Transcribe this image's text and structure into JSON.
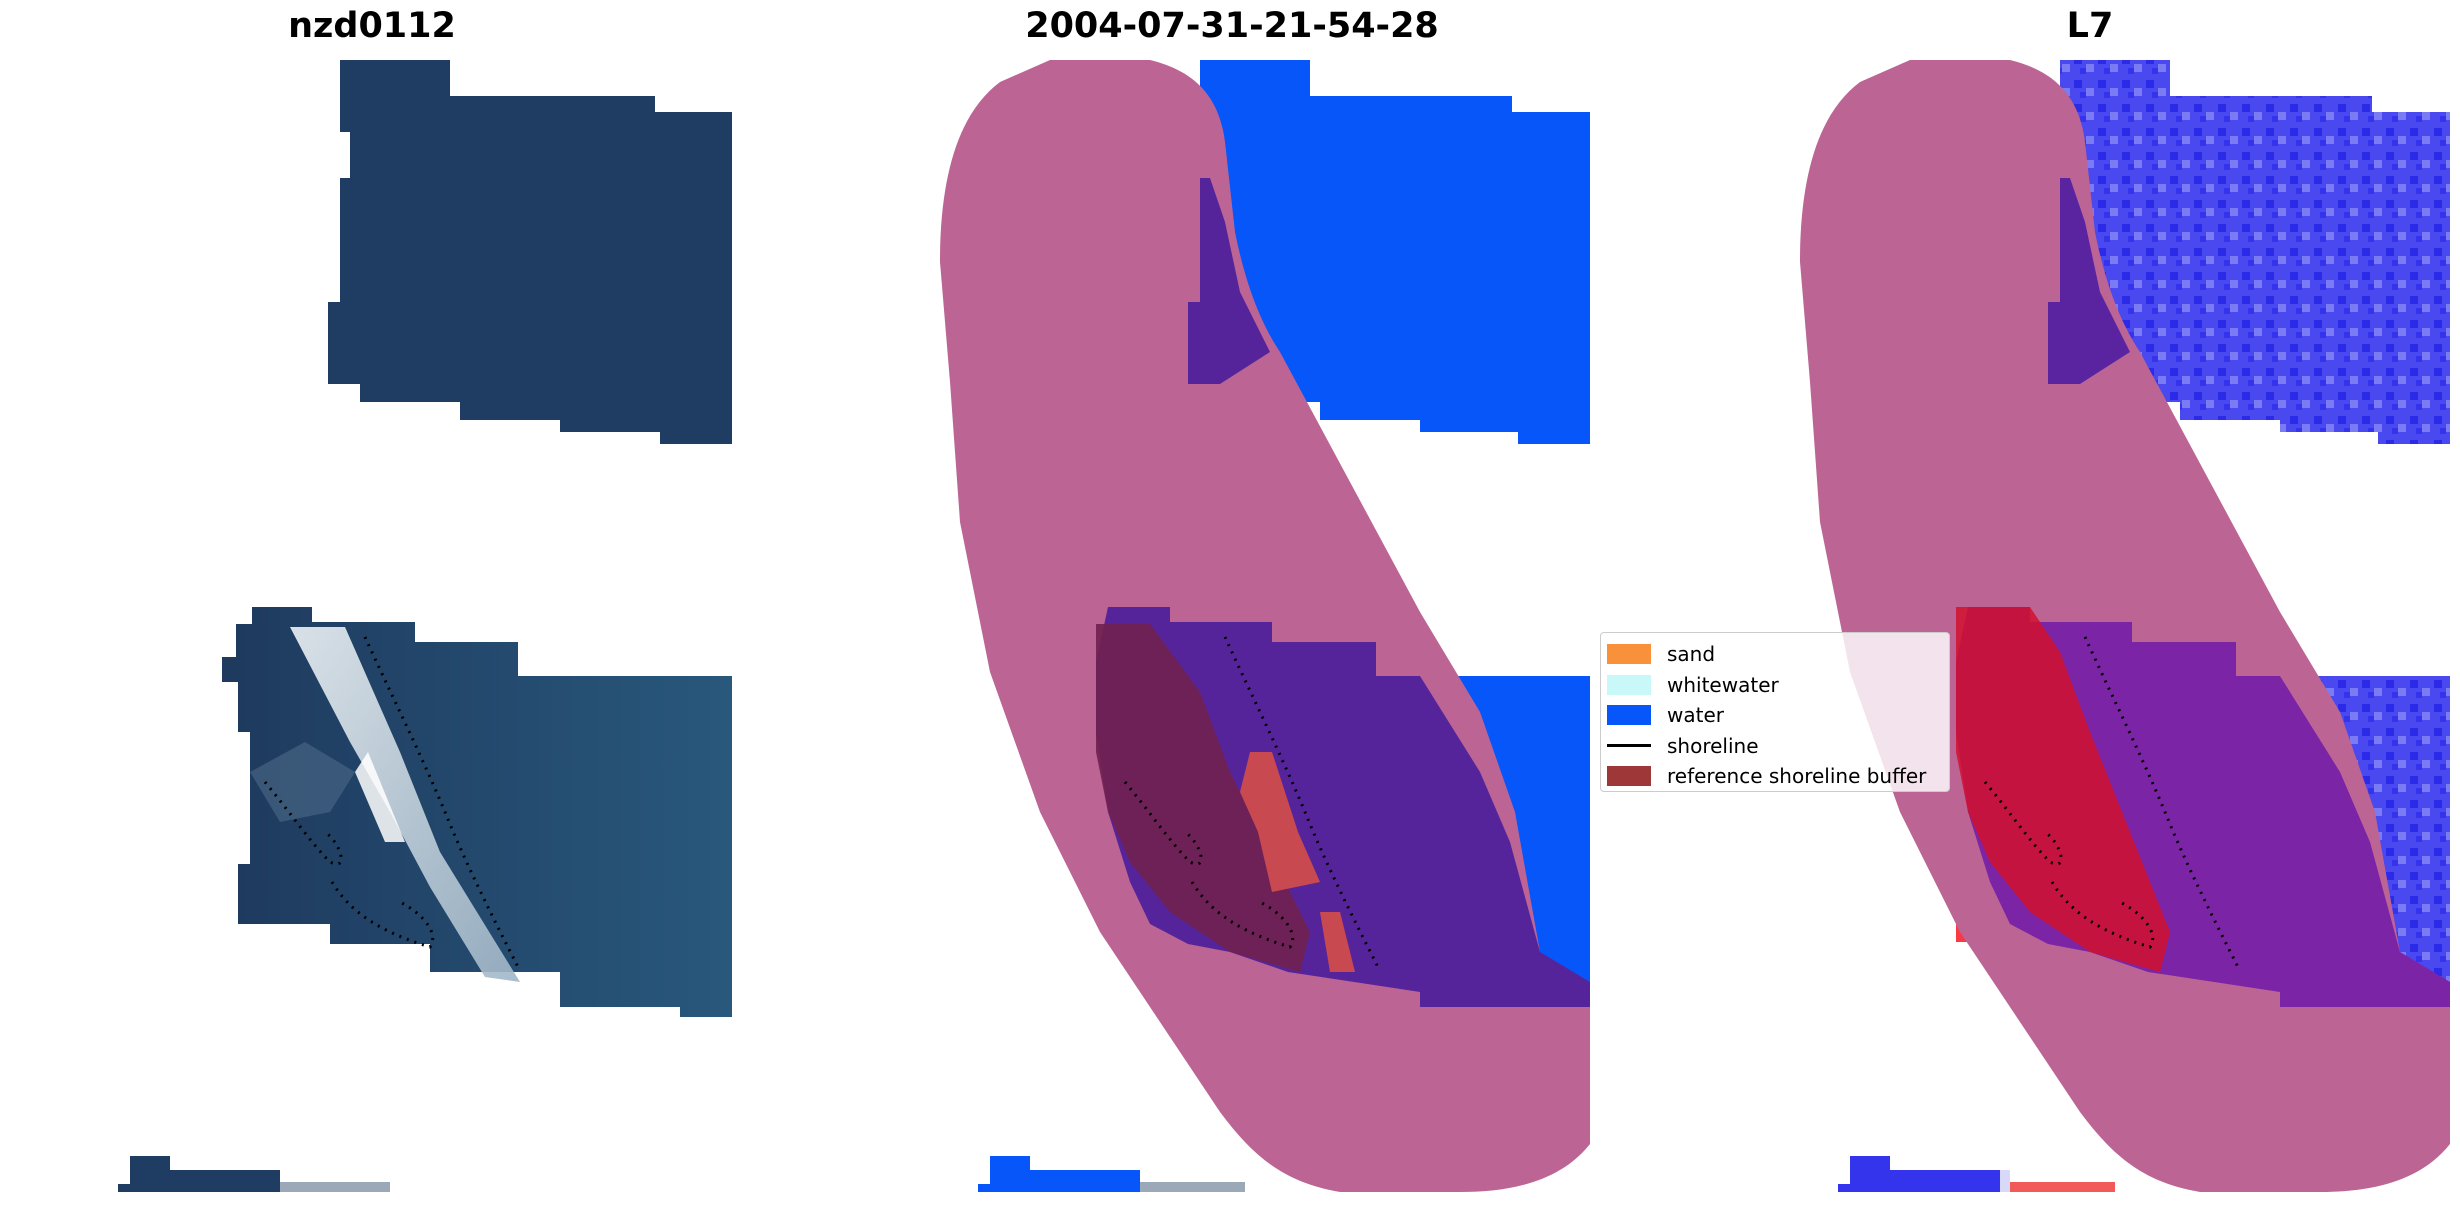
{
  "panels": [
    {
      "title": "nzd0112"
    },
    {
      "title": "2004-07-31-21-54-28"
    },
    {
      "title": "L7"
    }
  ],
  "legend": {
    "items": [
      {
        "label": "sand",
        "kind": "patch",
        "color": "#f8913a"
      },
      {
        "label": "whitewater",
        "kind": "patch",
        "color": "#c8f8f8"
      },
      {
        "label": "water",
        "kind": "patch",
        "color": "#0656fa"
      },
      {
        "label": "shoreline",
        "kind": "line",
        "color": "#000000"
      },
      {
        "label": "reference shoreline buffer",
        "kind": "patch",
        "color": "#9e3838"
      }
    ]
  },
  "colors": {
    "dark_sea": "#1f3e63",
    "mid_sea": "#24557a",
    "surf_white": "#e8eef2",
    "water": "#0656fa",
    "buffer": "#bc6594",
    "overlap_purple": "#56249a",
    "sand_overlap": "#c84a50",
    "dark_overlap": "#702250",
    "l7_blue": "#4a48ef",
    "l7_red": "#d2102e",
    "l7_purple": "#7c24a6"
  }
}
